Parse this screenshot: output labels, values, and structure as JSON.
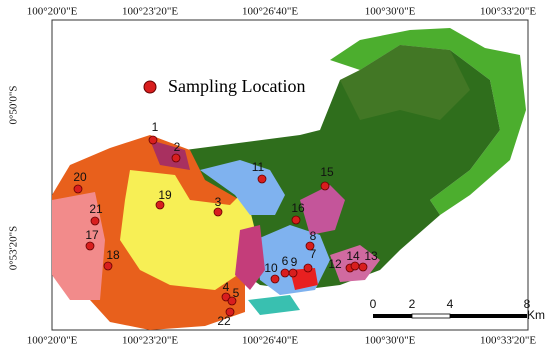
{
  "legend": {
    "label": "Sampling Location"
  },
  "coordinates": {
    "longitude": [
      "100°20'0\"E",
      "100°23'20\"E",
      "100°26'40\"E",
      "100°30'0\"E",
      "100°33'20\"E"
    ],
    "latitude": [
      "0°50'0\"S",
      "0°53'20\"S"
    ]
  },
  "sampling_points": [
    "1",
    "2",
    "3",
    "4",
    "5",
    "6",
    "7",
    "8",
    "9",
    "10",
    "11",
    "12",
    "13",
    "14",
    "15",
    "16",
    "17",
    "18",
    "19",
    "20",
    "21",
    "22"
  ],
  "scale_bar": {
    "labels": [
      0,
      2,
      4,
      8
    ],
    "unit": "Km"
  }
}
